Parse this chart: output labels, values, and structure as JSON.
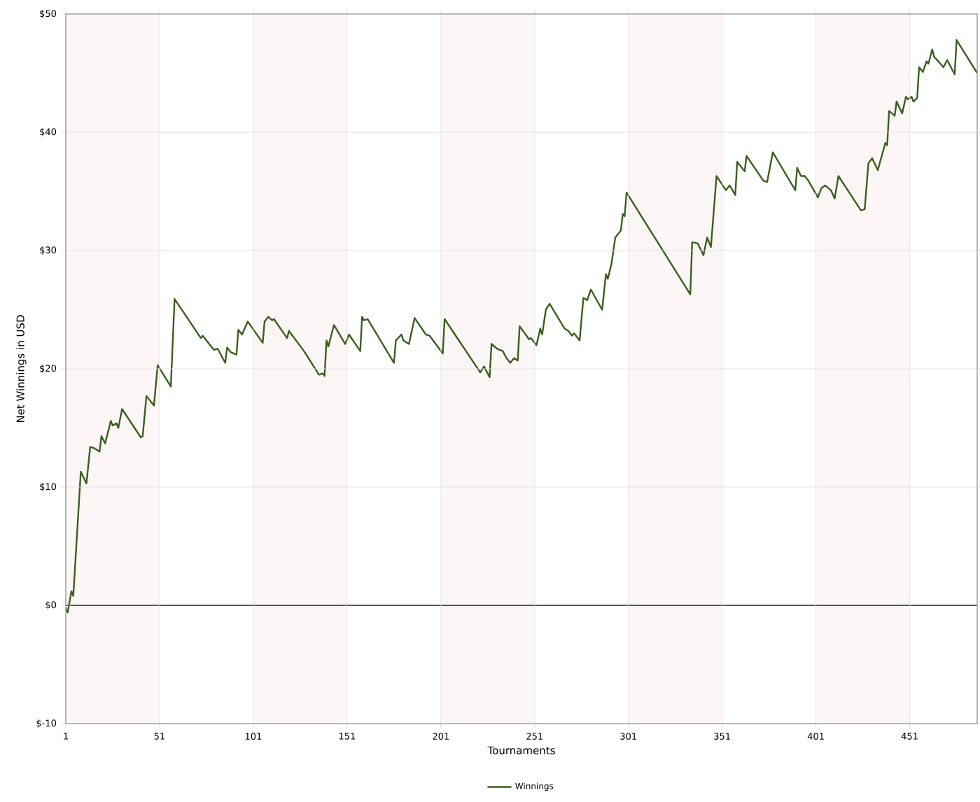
{
  "chart_data": {
    "type": "line",
    "xlabel": "Tournaments",
    "ylabel": "Net Winnings in USD",
    "x": [
      1,
      2,
      4,
      5,
      9,
      12,
      14,
      16,
      19,
      20,
      22,
      25,
      26,
      28,
      29,
      31,
      41,
      42,
      44,
      48,
      50,
      57,
      59,
      73,
      74,
      80,
      82,
      86,
      87,
      89,
      92,
      93,
      95,
      98,
      106,
      107,
      109,
      111,
      112,
      119,
      120,
      128,
      136,
      138,
      139,
      140,
      141,
      144,
      150,
      152,
      158,
      159,
      160,
      162,
      176,
      177,
      180,
      181,
      184,
      187,
      193,
      195,
      202,
      203,
      222,
      224,
      227,
      228,
      231,
      234,
      236,
      238,
      240,
      242,
      243,
      248,
      249,
      251,
      252,
      254,
      255,
      257,
      259,
      267,
      269,
      271,
      272,
      274,
      275,
      277,
      279,
      281,
      287,
      289,
      290,
      292,
      294,
      297,
      298,
      299,
      300,
      334,
      335,
      338,
      341,
      343,
      345,
      348,
      353,
      355,
      358,
      359,
      363,
      364,
      373,
      375,
      378,
      390,
      391,
      393,
      395,
      397,
      402,
      404,
      406,
      409,
      411,
      413,
      425,
      427,
      429,
      431,
      434,
      438,
      439,
      440,
      443,
      444,
      447,
      449,
      450,
      452,
      453,
      455,
      456,
      458,
      460,
      461,
      463,
      464,
      469,
      471,
      475,
      476,
      487
    ],
    "series": [
      {
        "name": "Winnings",
        "color": "#3a5f1e",
        "values": [
          -0.2,
          -0.6,
          1.2,
          0.8,
          11.3,
          10.3,
          13.4,
          13.3,
          13.0,
          14.3,
          13.7,
          15.6,
          15.2,
          15.4,
          15.0,
          16.6,
          14.2,
          14.3,
          17.7,
          16.9,
          20.3,
          18.5,
          25.9,
          22.6,
          22.8,
          21.6,
          21.7,
          20.5,
          21.8,
          21.4,
          21.2,
          23.3,
          22.9,
          24.0,
          22.2,
          24.0,
          24.4,
          24.1,
          24.2,
          22.6,
          23.2,
          21.5,
          19.5,
          19.6,
          19.4,
          22.4,
          21.9,
          23.7,
          22.1,
          22.9,
          21.5,
          24.4,
          24.1,
          24.2,
          20.5,
          22.4,
          22.9,
          22.4,
          22.1,
          24.3,
          22.9,
          22.8,
          21.3,
          24.2,
          19.7,
          20.2,
          19.3,
          22.1,
          21.7,
          21.5,
          20.9,
          20.5,
          20.9,
          20.7,
          23.6,
          22.5,
          22.6,
          22.2,
          22.0,
          23.4,
          22.9,
          25.0,
          25.5,
          23.4,
          23.2,
          22.8,
          23.0,
          22.6,
          22.4,
          26.0,
          25.8,
          26.7,
          25.0,
          28.0,
          27.6,
          28.9,
          31.1,
          31.7,
          33.1,
          32.9,
          34.9,
          26.3,
          30.7,
          30.6,
          29.6,
          31.1,
          30.3,
          36.3,
          35.1,
          35.5,
          34.7,
          37.5,
          36.7,
          38.0,
          35.9,
          35.8,
          38.3,
          35.1,
          37.0,
          36.3,
          36.3,
          35.9,
          34.5,
          35.3,
          35.5,
          35.1,
          34.4,
          36.3,
          33.4,
          33.5,
          37.4,
          37.8,
          36.8,
          39.1,
          38.9,
          41.8,
          41.4,
          42.6,
          41.6,
          43.0,
          42.8,
          43.0,
          42.6,
          42.9,
          45.5,
          45.1,
          46.0,
          45.8,
          47.0,
          46.4,
          45.5,
          46.1,
          44.9,
          47.8,
          45.0
        ]
      }
    ],
    "xlim": [
      1,
      487
    ],
    "ylim": [
      -10,
      50
    ],
    "xticks": [
      1,
      51,
      101,
      151,
      201,
      251,
      301,
      351,
      401,
      451
    ],
    "yticks": [
      {
        "value": -10,
        "label": "$-10"
      },
      {
        "value": 0,
        "label": "$0"
      },
      {
        "value": 10,
        "label": "$10"
      },
      {
        "value": 20,
        "label": "$20"
      },
      {
        "value": 30,
        "label": "$30"
      },
      {
        "value": 40,
        "label": "$40"
      },
      {
        "value": 50,
        "label": "$50"
      }
    ],
    "ref_lines": [
      {
        "axis": "y",
        "value": 0,
        "color": "#000000"
      }
    ],
    "bands": [
      {
        "axis": "x",
        "from": 1,
        "to": 51,
        "color": "#fcf6f6"
      },
      {
        "axis": "x",
        "from": 101,
        "to": 151,
        "color": "#fcf6f6"
      },
      {
        "axis": "x",
        "from": 201,
        "to": 251,
        "color": "#fcf6f6"
      },
      {
        "axis": "x",
        "from": 301,
        "to": 351,
        "color": "#fcf6f6"
      },
      {
        "axis": "x",
        "from": 401,
        "to": 451,
        "color": "#fcf6f6"
      }
    ],
    "grid": true,
    "legend": "bottom",
    "marker": "none",
    "line_style": "solid"
  }
}
